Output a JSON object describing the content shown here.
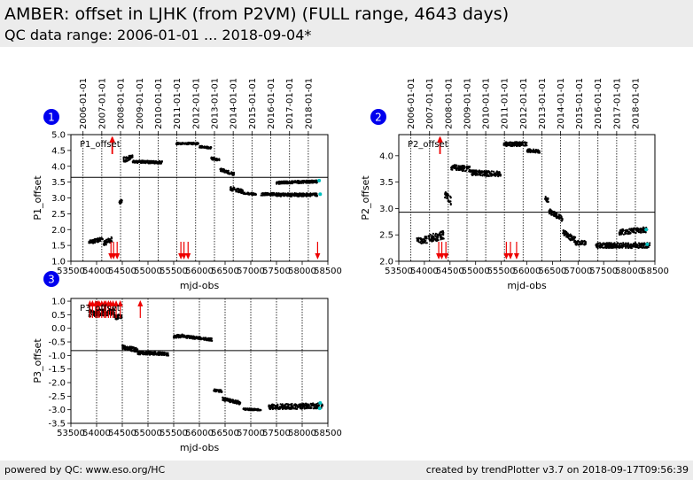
{
  "header": {
    "title": "AMBER: offset in LJHK (from P2VM) (FULL range, 4643 days)",
    "subtitle": "QC data range: 2006-01-01 ... 2018-09-04*"
  },
  "footer": {
    "left": "powered by QC: www.eso.org/HC",
    "right": "created by trendPlotter v3.7 on 2018-09-17T09:56:39"
  },
  "colors": {
    "points": "#000000",
    "outlier": "#ee0000",
    "badge": "#0000ee",
    "latest": "#00c0c0"
  },
  "chart_data": [
    {
      "type": "scatter",
      "badge": "1",
      "label": "P1_offset",
      "xlabel": "mjd-obs",
      "ylabel": "P1_offset",
      "xlim": [
        53500,
        58500
      ],
      "ylim": [
        1.0,
        5.0
      ],
      "ref_value": 3.65,
      "xticks": [
        "53500",
        "54000",
        "54500",
        "55000",
        "55500",
        "56000",
        "56500",
        "57000",
        "57500",
        "58000",
        "58500"
      ],
      "yticks": [
        "1.0",
        "1.5",
        "2.0",
        "2.5",
        "3.0",
        "3.5",
        "4.0",
        "4.5",
        "5.0"
      ],
      "date_ticks": [
        "2006-01-01",
        "2007-01-01",
        "2008-01-01",
        "2009-01-01",
        "2010-01-01",
        "2011-01-01",
        "2012-01-01",
        "2013-01-01",
        "2014-01-01",
        "2015-01-01",
        "2016-01-01",
        "2017-01-01",
        "2018-01-01"
      ],
      "segments": [
        {
          "x": [
            53850,
            54120
          ],
          "y": [
            1.6,
            1.7
          ],
          "spread": 0.06
        },
        {
          "x": [
            54130,
            54300
          ],
          "y": [
            1.55,
            1.7
          ],
          "spread": 0.08
        },
        {
          "x": [
            54440,
            54500
          ],
          "y": [
            2.85,
            2.9
          ],
          "spread": 0.05
        },
        {
          "x": [
            54520,
            54700
          ],
          "y": [
            4.2,
            4.3
          ],
          "spread": 0.08
        },
        {
          "x": [
            54700,
            55280
          ],
          "y": [
            4.15,
            4.12
          ],
          "spread": 0.04
        },
        {
          "x": [
            55550,
            55990
          ],
          "y": [
            4.72,
            4.72
          ],
          "spread": 0.03
        },
        {
          "x": [
            56000,
            56230
          ],
          "y": [
            4.62,
            4.58
          ],
          "spread": 0.03
        },
        {
          "x": [
            56230,
            56400
          ],
          "y": [
            4.25,
            4.2
          ],
          "spread": 0.04
        },
        {
          "x": [
            56400,
            56680
          ],
          "y": [
            3.9,
            3.75
          ],
          "spread": 0.05
        },
        {
          "x": [
            56600,
            56850
          ],
          "y": [
            3.3,
            3.2
          ],
          "spread": 0.06
        },
        {
          "x": [
            56850,
            57100
          ],
          "y": [
            3.15,
            3.12
          ],
          "spread": 0.03
        },
        {
          "x": [
            57200,
            57500
          ],
          "y": [
            3.12,
            3.12
          ],
          "spread": 0.04
        },
        {
          "x": [
            57500,
            58300
          ],
          "y": [
            3.1,
            3.1
          ],
          "spread": 0.05
        },
        {
          "x": [
            57500,
            58300
          ],
          "y": [
            3.48,
            3.52
          ],
          "spread": 0.04
        }
      ],
      "outliers_up": [
        54300,
        54310
      ],
      "outliers_down": [
        54280,
        54330,
        54400,
        55640,
        55700,
        55780,
        58300
      ],
      "latest": [
        {
          "x": 58350,
          "y": 3.12
        },
        {
          "x": 58330,
          "y": 3.55
        }
      ]
    },
    {
      "type": "scatter",
      "badge": "2",
      "label": "P2_offset",
      "xlabel": "mjd-obs",
      "ylabel": "P2_offset",
      "xlim": [
        53500,
        58500
      ],
      "ylim": [
        2.0,
        4.4
      ],
      "ref_value": 2.93,
      "xticks": [
        "53500",
        "54000",
        "54500",
        "55000",
        "55500",
        "56000",
        "56500",
        "57000",
        "57500",
        "58000",
        "58500"
      ],
      "yticks": [
        "2.0",
        "2.5",
        "3.0",
        "3.5",
        "4.0"
      ],
      "date_ticks": [
        "2006-01-01",
        "2007-01-01",
        "2008-01-01",
        "2009-01-01",
        "2010-01-01",
        "2011-01-01",
        "2012-01-01",
        "2013-01-01",
        "2014-01-01",
        "2015-01-01",
        "2016-01-01",
        "2017-01-01",
        "2018-01-01"
      ],
      "segments": [
        {
          "x": [
            53850,
            54000
          ],
          "y": [
            2.4,
            2.38
          ],
          "spread": 0.05
        },
        {
          "x": [
            54000,
            54380
          ],
          "y": [
            2.4,
            2.5
          ],
          "spread": 0.08
        },
        {
          "x": [
            54400,
            54520
          ],
          "y": [
            3.25,
            3.15
          ],
          "spread": 0.08
        },
        {
          "x": [
            54520,
            54900
          ],
          "y": [
            3.78,
            3.75
          ],
          "spread": 0.05
        },
        {
          "x": [
            54900,
            55500
          ],
          "y": [
            3.68,
            3.65
          ],
          "spread": 0.05
        },
        {
          "x": [
            55550,
            56000
          ],
          "y": [
            4.22,
            4.22
          ],
          "spread": 0.04
        },
        {
          "x": [
            56000,
            56250
          ],
          "y": [
            4.1,
            4.08
          ],
          "spread": 0.03
        },
        {
          "x": [
            56350,
            56420
          ],
          "y": [
            3.2,
            3.15
          ],
          "spread": 0.04
        },
        {
          "x": [
            56430,
            56700
          ],
          "y": [
            2.95,
            2.8
          ],
          "spread": 0.05
        },
        {
          "x": [
            56700,
            56950
          ],
          "y": [
            2.55,
            2.4
          ],
          "spread": 0.06
        },
        {
          "x": [
            56950,
            57150
          ],
          "y": [
            2.35,
            2.35
          ],
          "spread": 0.04
        },
        {
          "x": [
            57350,
            58400
          ],
          "y": [
            2.3,
            2.3
          ],
          "spread": 0.05
        },
        {
          "x": [
            57800,
            58350
          ],
          "y": [
            2.55,
            2.6
          ],
          "spread": 0.05
        }
      ],
      "outliers_up": [
        54300,
        54310
      ],
      "outliers_down": [
        54280,
        54340,
        54420,
        55600,
        55680,
        55800
      ],
      "latest": [
        {
          "x": 58350,
          "y": 2.32
        },
        {
          "x": 58330,
          "y": 2.6
        }
      ]
    },
    {
      "type": "scatter",
      "badge": "3",
      "label": "P3_offset",
      "xlabel": "mjd-obs",
      "ylabel": "P3_offset",
      "xlim": [
        53500,
        58500
      ],
      "ylim": [
        -3.5,
        1.1
      ],
      "ref_value": -0.82,
      "xticks": [
        "53500",
        "54000",
        "54500",
        "55000",
        "55500",
        "56000",
        "56500",
        "57000",
        "57500",
        "58000",
        "58500"
      ],
      "yticks": [
        "-3.5",
        "-3.0",
        "-2.5",
        "-2.0",
        "-1.5",
        "-1.0",
        "-0.5",
        "0.0",
        "0.5",
        "1.0"
      ],
      "segments": [
        {
          "x": [
            53850,
            54350
          ],
          "y": [
            0.55,
            0.6
          ],
          "spread": 0.12
        },
        {
          "x": [
            54350,
            54500
          ],
          "y": [
            0.4,
            0.45
          ],
          "spread": 0.08
        },
        {
          "x": [
            54500,
            54800
          ],
          "y": [
            -0.7,
            -0.8
          ],
          "spread": 0.08
        },
        {
          "x": [
            54800,
            55400
          ],
          "y": [
            -0.9,
            -0.95
          ],
          "spread": 0.06
        },
        {
          "x": [
            55500,
            55700
          ],
          "y": [
            -0.3,
            -0.28
          ],
          "spread": 0.06
        },
        {
          "x": [
            55700,
            56250
          ],
          "y": [
            -0.3,
            -0.42
          ],
          "spread": 0.05
        },
        {
          "x": [
            56280,
            56450
          ],
          "y": [
            -2.28,
            -2.32
          ],
          "spread": 0.04
        },
        {
          "x": [
            56450,
            56800
          ],
          "y": [
            -2.6,
            -2.75
          ],
          "spread": 0.06
        },
        {
          "x": [
            56850,
            57200
          ],
          "y": [
            -2.98,
            -3.0
          ],
          "spread": 0.03
        },
        {
          "x": [
            57350,
            58400
          ],
          "y": [
            -2.9,
            -2.85
          ],
          "spread": 0.1
        }
      ],
      "outliers_up": [
        53870,
        53920,
        53980,
        54020,
        54050,
        54100,
        54150,
        54180,
        54230,
        54270,
        54320,
        54380,
        54460,
        54850
      ],
      "outliers_down": [],
      "latest": [
        {
          "x": 58350,
          "y": -2.75
        },
        {
          "x": 58340,
          "y": -2.95
        }
      ]
    }
  ]
}
